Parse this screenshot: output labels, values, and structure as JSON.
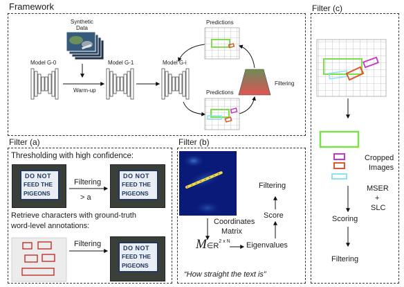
{
  "framework": {
    "title": "Framework",
    "synthetic_data": [
      "Synthetic",
      "Data"
    ],
    "models": [
      "Model G-0",
      "Model G-1",
      "Model G-i"
    ],
    "warmup": "Warm-up",
    "predictions": "Predictions",
    "filtering": "Filtering"
  },
  "filter_a": {
    "title": "Filter (a)",
    "threshold_text": "Thresholding with high confidence:",
    "filtering": "Filtering",
    "threshold_condition": "> a",
    "retrieve_text": [
      "Retrieve characters with ground-truth",
      "word-level annotations:"
    ],
    "filtering2": "Filtering",
    "sign_words": [
      "DO NOT",
      "FEED THE",
      "PIGEONS"
    ]
  },
  "filter_b": {
    "title": "Filter (b)",
    "filtering": "Filtering",
    "score": "Score",
    "coordinates": [
      "Coordinates",
      "Matrix"
    ],
    "matrix_symbol": "M",
    "matrix_in": "∈R",
    "matrix_sup": "2 x N",
    "eigenvalues": "Eigenvalues",
    "caption": "“How straight the text is”"
  },
  "filter_c": {
    "title": "Filter (c)",
    "cropped_images": [
      "Cropped",
      "Images"
    ],
    "method": [
      "MSER",
      "+",
      "SLC"
    ],
    "scoring": "Scoring",
    "filtering": "Filtering"
  },
  "colors": {
    "green": "#7de04a",
    "magenta": "#c236c9",
    "orange": "#e0562a",
    "cyan": "#8ee3f0",
    "heatmap_bg": "#0a1a78"
  }
}
